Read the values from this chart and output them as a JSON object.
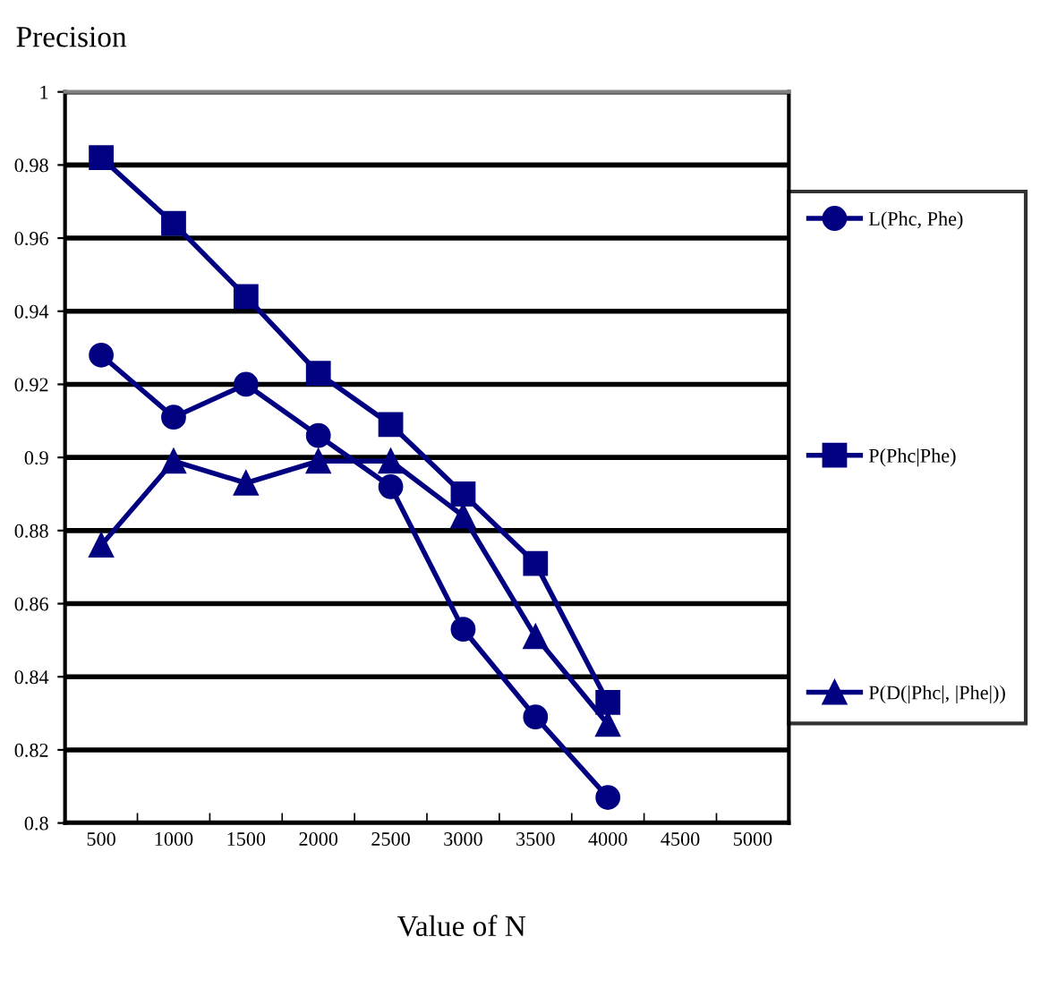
{
  "chart_data": {
    "type": "line",
    "ylabel": "Precision",
    "xlabel": "Value of N",
    "categories": [
      "500",
      "1000",
      "1500",
      "2000",
      "2500",
      "3000",
      "3500",
      "4000",
      "4500",
      "5000"
    ],
    "series": [
      {
        "name": "L(Phc, Phe)",
        "color": "#000080",
        "marker": "circle",
        "values": [
          0.928,
          0.911,
          0.92,
          0.906,
          0.892,
          0.853,
          0.829,
          0.807,
          null,
          null
        ]
      },
      {
        "name": "P(Phc|Phe)",
        "color": "#000080",
        "marker": "square",
        "values": [
          0.982,
          0.964,
          0.944,
          0.923,
          0.909,
          0.89,
          0.871,
          0.833,
          null,
          null
        ]
      },
      {
        "name": "P(D(|Phc|, |Phe|))",
        "color": "#000080",
        "marker": "triangle",
        "values": [
          0.876,
          0.899,
          0.893,
          0.899,
          0.899,
          0.884,
          0.851,
          0.827,
          null,
          null
        ]
      }
    ],
    "ylim": [
      0.8,
      1
    ],
    "yticks": [
      0.8,
      0.82,
      0.84,
      0.86,
      0.88,
      0.9,
      0.92,
      0.94,
      0.96,
      0.98,
      1
    ],
    "grid": "y",
    "legend": "right",
    "line_style": "solid"
  }
}
